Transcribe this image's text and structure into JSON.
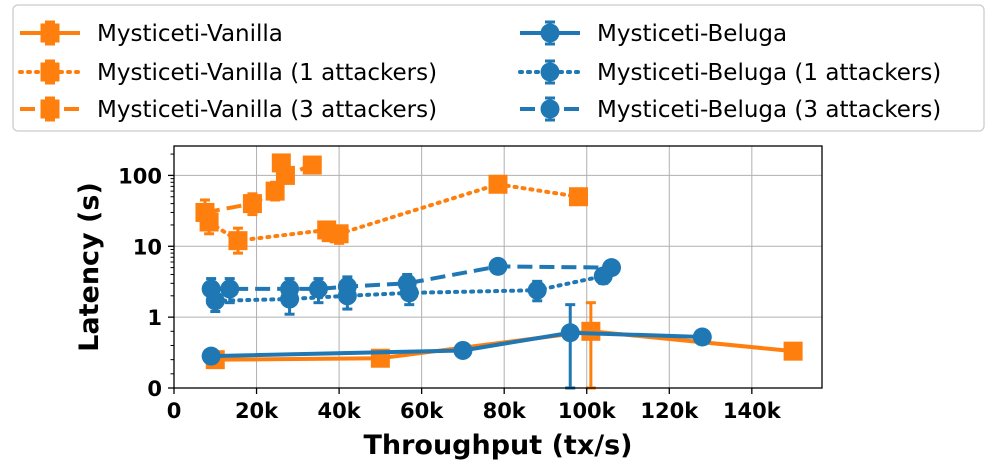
{
  "chart_data": {
    "type": "line",
    "xlabel": "Throughput (tx/s)",
    "ylabel": "Latency (s)",
    "xlim": [
      0,
      157000
    ],
    "y_scale": "symlog",
    "ylim": [
      0,
      260
    ],
    "grid": true,
    "legend_placement": "top",
    "x_ticks": [
      {
        "value": 0,
        "label": "0"
      },
      {
        "value": 20000,
        "label": "20k"
      },
      {
        "value": 40000,
        "label": "40k"
      },
      {
        "value": 60000,
        "label": "60k"
      },
      {
        "value": 80000,
        "label": "80k"
      },
      {
        "value": 100000,
        "label": "100k"
      },
      {
        "value": 120000,
        "label": "120k"
      },
      {
        "value": 140000,
        "label": "140k"
      }
    ],
    "y_ticks": [
      {
        "value": 0,
        "label": "0"
      },
      {
        "value": 1,
        "label": "1"
      },
      {
        "value": 10,
        "label": "10"
      },
      {
        "value": 100,
        "label": "100"
      }
    ],
    "colors": {
      "vanilla": "#ff7f0e",
      "beluga": "#1f77b4"
    },
    "series": [
      {
        "name": "Mysticeti-Vanilla",
        "color": "#ff7f0e",
        "marker": "square",
        "linestyle": "solid",
        "points": [
          {
            "x": 10000,
            "y": 0.4
          },
          {
            "x": 50000,
            "y": 0.42
          },
          {
            "x": 101000,
            "y": 0.8,
            "err_low": 0.0,
            "err_high": 1.6
          },
          {
            "x": 150000,
            "y": 0.52
          }
        ]
      },
      {
        "name": "Mysticeti-Vanilla (1 attackers)",
        "color": "#ff7f0e",
        "marker": "square",
        "linestyle": "dotted",
        "points": [
          {
            "x": 8500,
            "y": 22,
            "err_low": 15,
            "err_high": 30
          },
          {
            "x": 15500,
            "y": 12,
            "err_low": 8,
            "err_high": 18
          },
          {
            "x": 37000,
            "y": 17,
            "err_low": 12,
            "err_high": 22
          },
          {
            "x": 40000,
            "y": 15,
            "err_low": 11,
            "err_high": 19
          },
          {
            "x": 78500,
            "y": 75
          },
          {
            "x": 98000,
            "y": 50
          }
        ]
      },
      {
        "name": "Mysticeti-Vanilla (3 attackers)",
        "color": "#ff7f0e",
        "marker": "square",
        "linestyle": "dashed",
        "points": [
          {
            "x": 7500,
            "y": 30,
            "err_low": 20,
            "err_high": 45
          },
          {
            "x": 19000,
            "y": 40,
            "err_low": 28,
            "err_high": 55
          },
          {
            "x": 24500,
            "y": 60,
            "err_low": 45,
            "err_high": 80
          },
          {
            "x": 26000,
            "y": 150
          },
          {
            "x": 27000,
            "y": 100
          },
          {
            "x": 33500,
            "y": 140
          }
        ]
      },
      {
        "name": "Mysticeti-Beluga",
        "color": "#1f77b4",
        "marker": "circle",
        "linestyle": "solid",
        "points": [
          {
            "x": 9000,
            "y": 0.45
          },
          {
            "x": 70000,
            "y": 0.53
          },
          {
            "x": 96000,
            "y": 0.78,
            "err_low": 0.0,
            "err_high": 1.5
          },
          {
            "x": 128000,
            "y": 0.72
          }
        ]
      },
      {
        "name": "Mysticeti-Beluga (1 attackers)",
        "color": "#1f77b4",
        "marker": "circle",
        "linestyle": "dotted",
        "points": [
          {
            "x": 10000,
            "y": 1.7,
            "err_low": 1.2,
            "err_high": 2.4
          },
          {
            "x": 28000,
            "y": 1.8,
            "err_low": 1.1,
            "err_high": 2.6
          },
          {
            "x": 42000,
            "y": 2.0,
            "err_low": 1.3,
            "err_high": 2.8
          },
          {
            "x": 57000,
            "y": 2.2,
            "err_low": 1.5,
            "err_high": 3.0
          },
          {
            "x": 88000,
            "y": 2.4,
            "err_low": 1.7,
            "err_high": 3.2
          },
          {
            "x": 104000,
            "y": 3.8,
            "err_low": 3.0,
            "err_high": 4.6
          }
        ]
      },
      {
        "name": "Mysticeti-Beluga (3 attackers)",
        "color": "#1f77b4",
        "marker": "circle",
        "linestyle": "dashed",
        "points": [
          {
            "x": 9000,
            "y": 2.5,
            "err_low": 1.6,
            "err_high": 3.5
          },
          {
            "x": 13500,
            "y": 2.5,
            "err_low": 1.6,
            "err_high": 3.5
          },
          {
            "x": 28000,
            "y": 2.5,
            "err_low": 1.6,
            "err_high": 3.5
          },
          {
            "x": 35000,
            "y": 2.5,
            "err_low": 1.6,
            "err_high": 3.5
          },
          {
            "x": 42000,
            "y": 2.7,
            "err_low": 1.8,
            "err_high": 3.7
          },
          {
            "x": 56500,
            "y": 3.0,
            "err_low": 2.0,
            "err_high": 4.0
          },
          {
            "x": 78500,
            "y": 5.2,
            "err_low": 4.2,
            "err_high": 6.2
          },
          {
            "x": 106000,
            "y": 5.0
          }
        ]
      }
    ]
  }
}
